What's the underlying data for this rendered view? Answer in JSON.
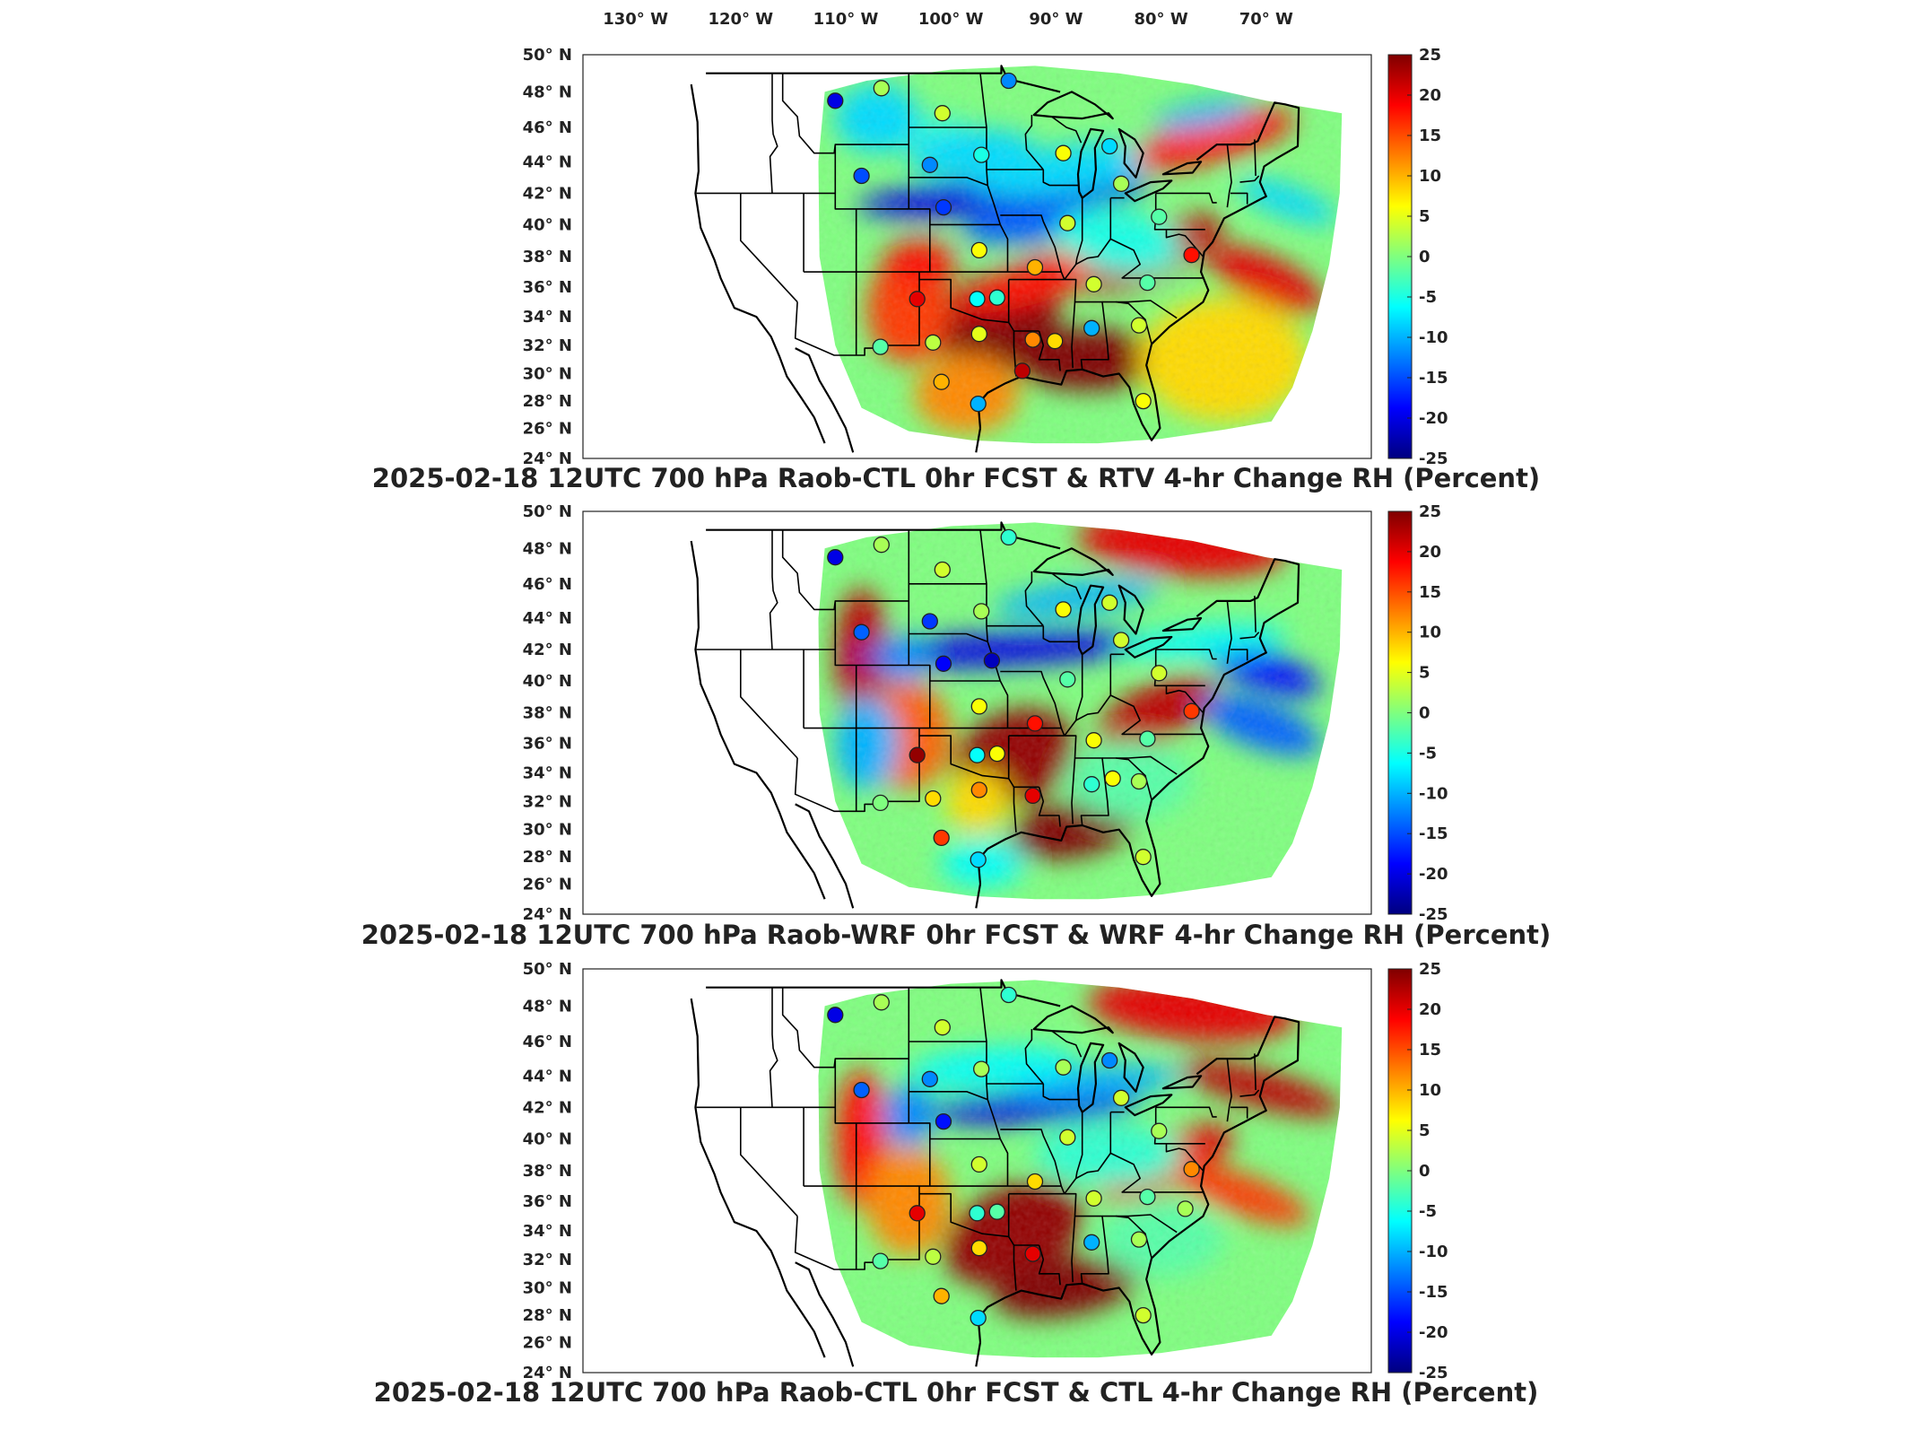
{
  "lon_labels": [
    "130",
    "120",
    "110",
    "100",
    "90",
    "80",
    "70"
  ],
  "lon_suffix": "W",
  "lat_labels": [
    "50",
    "48",
    "46",
    "44",
    "42",
    "40",
    "38",
    "36",
    "34",
    "32",
    "30",
    "28",
    "26",
    "24"
  ],
  "lat_suffix": "N",
  "colorbar_ticks": [
    "25",
    "20",
    "15",
    "10",
    "5",
    "0",
    "-5",
    "-10",
    "-15",
    "-20",
    "-25"
  ],
  "colorbar_range": [
    -25,
    25
  ],
  "colormap": [
    "#00007f",
    "#0000ff",
    "#007fff",
    "#00ffff",
    "#7fff7f",
    "#ffff00",
    "#ff7f00",
    "#ff0000",
    "#7f0000"
  ],
  "panels": [
    {
      "title": "2025-02-18 12UTC 700 hPa Raob-CTL 0hr FCST & RTV 4-hr Change RH (Percent)",
      "stations": [
        {
          "lon": -111.0,
          "lat": 47.5,
          "value": -20
        },
        {
          "lon": -106.6,
          "lat": 48.2,
          "value": 2
        },
        {
          "lon": -100.8,
          "lat": 46.8,
          "value": 4
        },
        {
          "lon": -97.1,
          "lat": 44.4,
          "value": -5
        },
        {
          "lon": -94.5,
          "lat": 48.6,
          "value": -12
        },
        {
          "lon": -102.0,
          "lat": 43.8,
          "value": -12
        },
        {
          "lon": -108.5,
          "lat": 43.1,
          "value": -15
        },
        {
          "lon": -100.7,
          "lat": 41.1,
          "value": -16
        },
        {
          "lon": -89.3,
          "lat": 44.5,
          "value": 6
        },
        {
          "lon": -84.9,
          "lat": 44.9,
          "value": -8
        },
        {
          "lon": -88.9,
          "lat": 40.1,
          "value": 4
        },
        {
          "lon": -83.8,
          "lat": 42.6,
          "value": 2
        },
        {
          "lon": -80.2,
          "lat": 40.5,
          "value": -2
        },
        {
          "lon": -77.1,
          "lat": 38.1,
          "value": 18
        },
        {
          "lon": -92.0,
          "lat": 37.3,
          "value": 10
        },
        {
          "lon": -97.3,
          "lat": 38.4,
          "value": 6
        },
        {
          "lon": -103.2,
          "lat": 35.2,
          "value": 20
        },
        {
          "lon": -97.5,
          "lat": 35.2,
          "value": -6
        },
        {
          "lon": -95.6,
          "lat": 35.3,
          "value": -4
        },
        {
          "lon": -101.7,
          "lat": 32.2,
          "value": 3
        },
        {
          "lon": -106.7,
          "lat": 31.9,
          "value": -2
        },
        {
          "lon": -97.3,
          "lat": 32.8,
          "value": 5
        },
        {
          "lon": -92.2,
          "lat": 32.4,
          "value": 12
        },
        {
          "lon": -90.1,
          "lat": 32.3,
          "value": 8
        },
        {
          "lon": -86.6,
          "lat": 33.2,
          "value": -10
        },
        {
          "lon": -86.4,
          "lat": 36.2,
          "value": 4
        },
        {
          "lon": -81.3,
          "lat": 36.3,
          "value": -2
        },
        {
          "lon": -82.1,
          "lat": 33.4,
          "value": 4
        },
        {
          "lon": -100.9,
          "lat": 29.4,
          "value": 10
        },
        {
          "lon": -97.4,
          "lat": 27.8,
          "value": -10
        },
        {
          "lon": -93.2,
          "lat": 30.2,
          "value": 22
        },
        {
          "lon": -81.7,
          "lat": 28.0,
          "value": 6
        }
      ]
    },
    {
      "title": "2025-02-18 12UTC 700 hPa Raob-WRF 0hr FCST & WRF 4-hr Change RH (Percent)",
      "stations": [
        {
          "lon": -111.0,
          "lat": 47.5,
          "value": -20
        },
        {
          "lon": -106.6,
          "lat": 48.2,
          "value": 2
        },
        {
          "lon": -100.8,
          "lat": 46.8,
          "value": 4
        },
        {
          "lon": -97.1,
          "lat": 44.4,
          "value": 2
        },
        {
          "lon": -94.5,
          "lat": 48.6,
          "value": -4
        },
        {
          "lon": -102.0,
          "lat": 43.8,
          "value": -16
        },
        {
          "lon": -108.5,
          "lat": 43.1,
          "value": -14
        },
        {
          "lon": -100.7,
          "lat": 41.1,
          "value": -19
        },
        {
          "lon": -96.1,
          "lat": 41.3,
          "value": -22
        },
        {
          "lon": -89.3,
          "lat": 44.5,
          "value": 6
        },
        {
          "lon": -84.9,
          "lat": 44.9,
          "value": 4
        },
        {
          "lon": -88.9,
          "lat": 40.1,
          "value": -2
        },
        {
          "lon": -83.8,
          "lat": 42.6,
          "value": 4
        },
        {
          "lon": -80.2,
          "lat": 40.5,
          "value": 4
        },
        {
          "lon": -77.1,
          "lat": 38.1,
          "value": 16
        },
        {
          "lon": -92.0,
          "lat": 37.3,
          "value": 18
        },
        {
          "lon": -97.3,
          "lat": 38.4,
          "value": 6
        },
        {
          "lon": -103.2,
          "lat": 35.2,
          "value": 24
        },
        {
          "lon": -97.5,
          "lat": 35.2,
          "value": -6
        },
        {
          "lon": -95.6,
          "lat": 35.3,
          "value": 6
        },
        {
          "lon": -101.7,
          "lat": 32.2,
          "value": 8
        },
        {
          "lon": -106.7,
          "lat": 31.9,
          "value": 0
        },
        {
          "lon": -97.3,
          "lat": 32.8,
          "value": 12
        },
        {
          "lon": -92.2,
          "lat": 32.4,
          "value": 20
        },
        {
          "lon": -86.6,
          "lat": 33.2,
          "value": -4
        },
        {
          "lon": -86.4,
          "lat": 36.2,
          "value": 6
        },
        {
          "lon": -84.6,
          "lat": 33.6,
          "value": 6
        },
        {
          "lon": -81.3,
          "lat": 36.3,
          "value": -2
        },
        {
          "lon": -82.1,
          "lat": 33.4,
          "value": 2
        },
        {
          "lon": -100.9,
          "lat": 29.4,
          "value": 16
        },
        {
          "lon": -97.4,
          "lat": 27.8,
          "value": -8
        },
        {
          "lon": -81.7,
          "lat": 28.0,
          "value": 4
        }
      ]
    },
    {
      "title": "2025-02-18 12UTC 700 hPa Raob-CTL 0hr FCST & CTL 4-hr Change RH (Percent)",
      "stations": [
        {
          "lon": -111.0,
          "lat": 47.5,
          "value": -20
        },
        {
          "lon": -106.6,
          "lat": 48.2,
          "value": 2
        },
        {
          "lon": -100.8,
          "lat": 46.8,
          "value": 4
        },
        {
          "lon": -97.1,
          "lat": 44.4,
          "value": 2
        },
        {
          "lon": -94.5,
          "lat": 48.6,
          "value": -4
        },
        {
          "lon": -102.0,
          "lat": 43.8,
          "value": -12
        },
        {
          "lon": -108.5,
          "lat": 43.1,
          "value": -14
        },
        {
          "lon": -100.7,
          "lat": 41.1,
          "value": -18
        },
        {
          "lon": -89.3,
          "lat": 44.5,
          "value": 2
        },
        {
          "lon": -84.9,
          "lat": 44.9,
          "value": -12
        },
        {
          "lon": -88.9,
          "lat": 40.1,
          "value": 4
        },
        {
          "lon": -83.8,
          "lat": 42.6,
          "value": 4
        },
        {
          "lon": -80.2,
          "lat": 40.5,
          "value": 2
        },
        {
          "lon": -77.1,
          "lat": 38.1,
          "value": 12
        },
        {
          "lon": -92.0,
          "lat": 37.3,
          "value": 8
        },
        {
          "lon": -97.3,
          "lat": 38.4,
          "value": 4
        },
        {
          "lon": -103.2,
          "lat": 35.2,
          "value": 20
        },
        {
          "lon": -97.5,
          "lat": 35.2,
          "value": -4
        },
        {
          "lon": -95.6,
          "lat": 35.3,
          "value": -2
        },
        {
          "lon": -101.7,
          "lat": 32.2,
          "value": 3
        },
        {
          "lon": -106.7,
          "lat": 31.9,
          "value": -2
        },
        {
          "lon": -97.3,
          "lat": 32.8,
          "value": 8
        },
        {
          "lon": -92.2,
          "lat": 32.4,
          "value": 20
        },
        {
          "lon": -86.6,
          "lat": 33.2,
          "value": -10
        },
        {
          "lon": -86.4,
          "lat": 36.2,
          "value": 4
        },
        {
          "lon": -81.3,
          "lat": 36.3,
          "value": -2
        },
        {
          "lon": -82.1,
          "lat": 33.4,
          "value": 2
        },
        {
          "lon": -100.9,
          "lat": 29.4,
          "value": 10
        },
        {
          "lon": -97.4,
          "lat": 27.8,
          "value": -8
        },
        {
          "lon": -81.7,
          "lat": 28.0,
          "value": 4
        },
        {
          "lon": -77.7,
          "lat": 35.5,
          "value": 2
        }
      ]
    }
  ]
}
